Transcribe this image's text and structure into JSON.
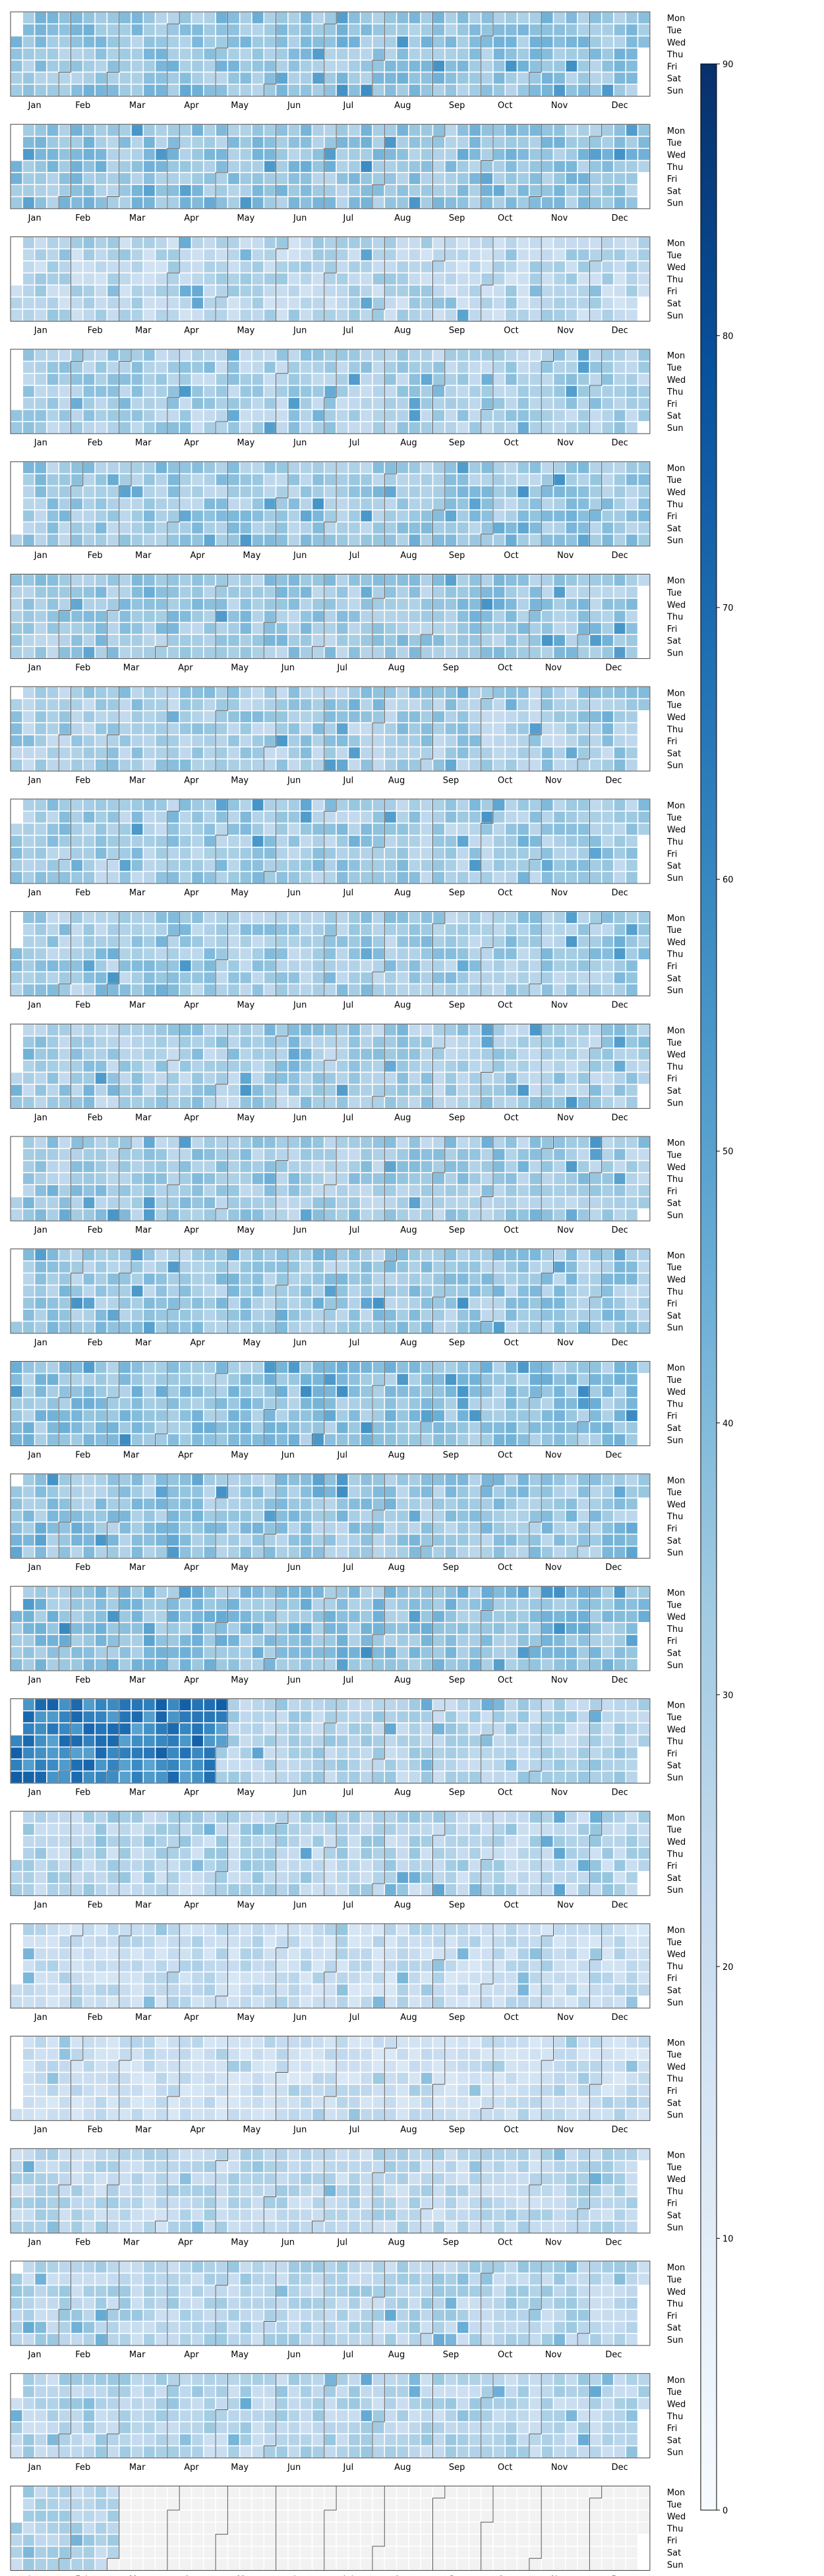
{
  "chart_data": {
    "type": "heatmap",
    "subtype": "calendar-heatmap",
    "panel_count": 23,
    "weekday_labels": [
      "Mon",
      "Tue",
      "Wed",
      "Thu",
      "Fri",
      "Sat",
      "Sun"
    ],
    "month_labels": [
      "Jan",
      "Feb",
      "Mar",
      "Apr",
      "May",
      "Jun",
      "Jul",
      "Aug",
      "Sep",
      "Oct",
      "Nov",
      "Dec"
    ],
    "colorbar": {
      "min": 0,
      "max": 90,
      "ticks": [
        0,
        10,
        20,
        30,
        40,
        50,
        60,
        70,
        80,
        90
      ],
      "colormap": "Blues",
      "color_stops": [
        "#f7fbff",
        "#deebf7",
        "#c6dbef",
        "#9ecae1",
        "#6baed6",
        "#4292c6",
        "#2171b5",
        "#08519c",
        "#08306b"
      ]
    },
    "values_note": "",
    "panels": [
      {
        "typical": 35,
        "spread": 9
      },
      {
        "typical": 35,
        "spread": 9
      },
      {
        "typical": 26,
        "spread": 9
      },
      {
        "typical": 30,
        "spread": 9
      },
      {
        "typical": 33,
        "spread": 9
      },
      {
        "typical": 33,
        "spread": 9
      },
      {
        "typical": 31,
        "spread": 9
      },
      {
        "typical": 32,
        "spread": 9
      },
      {
        "typical": 32,
        "spread": 9
      },
      {
        "typical": 31,
        "spread": 9
      },
      {
        "typical": 32,
        "spread": 9
      },
      {
        "typical": 33,
        "spread": 9
      },
      {
        "typical": 36,
        "spread": 9
      },
      {
        "typical": 34,
        "spread": 9
      },
      {
        "typical": 37,
        "spread": 9
      },
      {
        "typical": 28,
        "spread": 8,
        "high_period_end_month": 4,
        "high_period_typical": 62
      },
      {
        "typical": 27,
        "spread": 9
      },
      {
        "typical": 22,
        "spread": 8
      },
      {
        "typical": 20,
        "spread": 7
      },
      {
        "typical": 25,
        "spread": 8
      },
      {
        "typical": 27,
        "spread": 8
      },
      {
        "typical": 27,
        "spread": 8
      },
      {
        "typical": 28,
        "spread": 8,
        "active_until_month": 1
      }
    ]
  }
}
